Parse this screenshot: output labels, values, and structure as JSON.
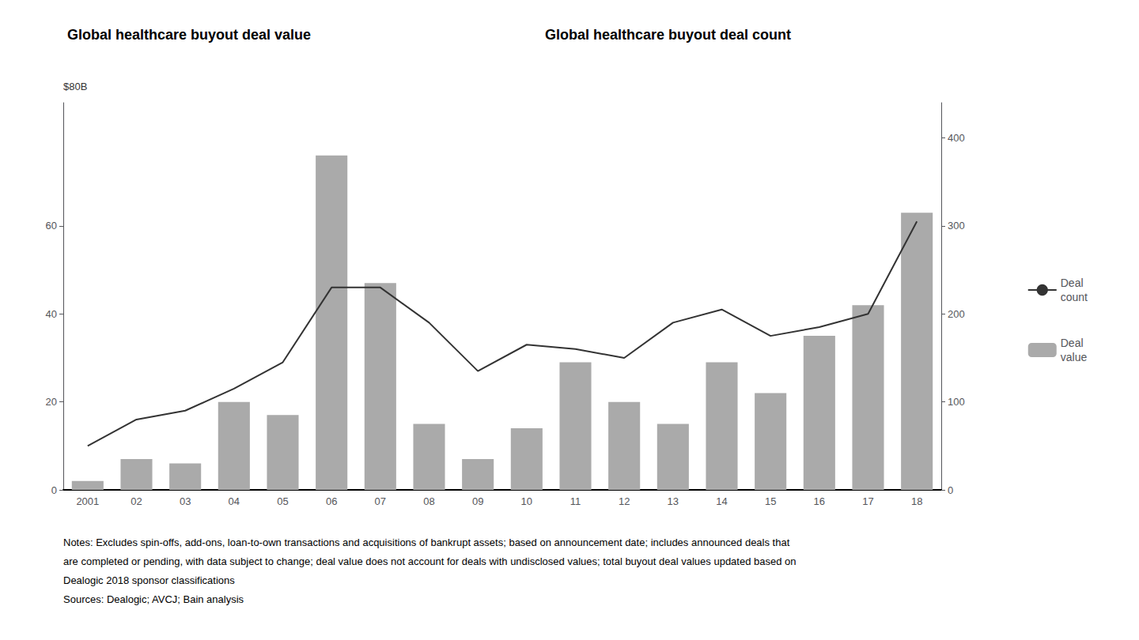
{
  "chart_data": {
    "type": "bar",
    "title": "Global healthcare buyout deal value",
    "subtitle": "Global healthcare buyout deal count",
    "ylabel": "$80B",
    "categories": [
      "2001",
      "02",
      "03",
      "04",
      "05",
      "06",
      "07",
      "08",
      "09",
      "10",
      "11",
      "12",
      "13",
      "14",
      "15",
      "16",
      "17",
      "18"
    ],
    "series": [
      {
        "name": "Deal\nvalue",
        "type": "bar",
        "color": "#aaaaaa",
        "values": [
          2,
          7,
          6,
          20,
          17,
          76,
          47,
          15,
          7,
          14,
          29,
          20,
          15,
          29,
          22,
          35,
          42,
          63
        ]
      },
      {
        "name": "Deal\ncount",
        "type": "line",
        "color": "#333333",
        "axis": "y2",
        "values": [
          50,
          80,
          90,
          115,
          145,
          230,
          230,
          190,
          135,
          165,
          160,
          150,
          190,
          205,
          175,
          185,
          200,
          305
        ]
      }
    ],
    "ylim": [
      0,
      88
    ],
    "yticks": [
      0,
      20,
      40,
      60
    ],
    "y2lim": [
      0,
      440
    ],
    "y2ticks": [
      0,
      100,
      200,
      300,
      400
    ],
    "grid": false,
    "legend": "right",
    "annotations": [
      "Notes: Excludes spin-offs, add-ons, loan-to-own transactions and acquisitions of bankrupt assets; based on announcement date; includes announced deals that",
      "are completed or pending, with data subject to change; deal value does not account for deals with undisclosed values; total buyout deal values updated based on",
      "Dealogic 2018 sponsor classifications",
      "Sources: Dealogic; AVCJ; Bain analysis"
    ]
  }
}
